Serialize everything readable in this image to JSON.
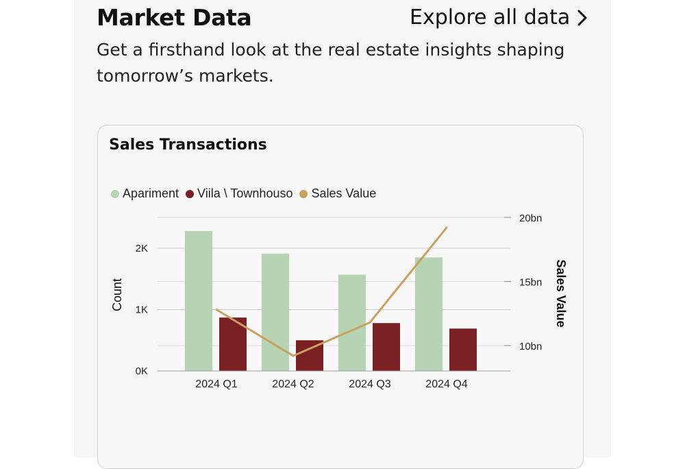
{
  "header": {
    "title": "Market Data",
    "explore_label": "Explore all data",
    "subtitle": "Get a firsthand look at the real estate insights shaping tomorrow’s markets."
  },
  "card": {
    "title": "Sales Transactions"
  },
  "legend": [
    {
      "label": "Apariment",
      "color": "#b6d3b4"
    },
    {
      "label": "Viila \\ Townhouso",
      "color": "#7a1f22"
    },
    {
      "label": "Sales Value",
      "color": "#c9a15f"
    }
  ],
  "chart_data": {
    "type": "bar",
    "title": "Sales Transactions",
    "categories": [
      "2024 Q1",
      "2024 Q2",
      "2024 Q3",
      "2024 Q4"
    ],
    "series": [
      {
        "name": "Apariment",
        "type": "bar",
        "axis": "left",
        "color": "#b6d3b4",
        "values": [
          2280,
          1910,
          1570,
          1850
        ]
      },
      {
        "name": "Viila \\ Townhouso",
        "type": "bar",
        "axis": "left",
        "color": "#7a1f22",
        "values": [
          870,
          500,
          780,
          690
        ]
      },
      {
        "name": "Sales Value",
        "type": "line",
        "axis": "right",
        "color": "#c9a15f",
        "values": [
          12.8,
          9.2,
          11.8,
          19.2
        ]
      }
    ],
    "ylabel": "Count",
    "y2label": "Sales Value",
    "ylim": [
      0,
      2000
    ],
    "yticks": [
      0,
      1000,
      2000
    ],
    "ytick_labels": [
      "0K",
      "1K",
      "2K"
    ],
    "y2lim": [
      10,
      20
    ],
    "y2ticks": [
      10,
      15,
      20
    ],
    "y2tick_labels": [
      "10bn",
      "15bn",
      "20bn"
    ],
    "grid": true,
    "legend_position": "top-left"
  }
}
